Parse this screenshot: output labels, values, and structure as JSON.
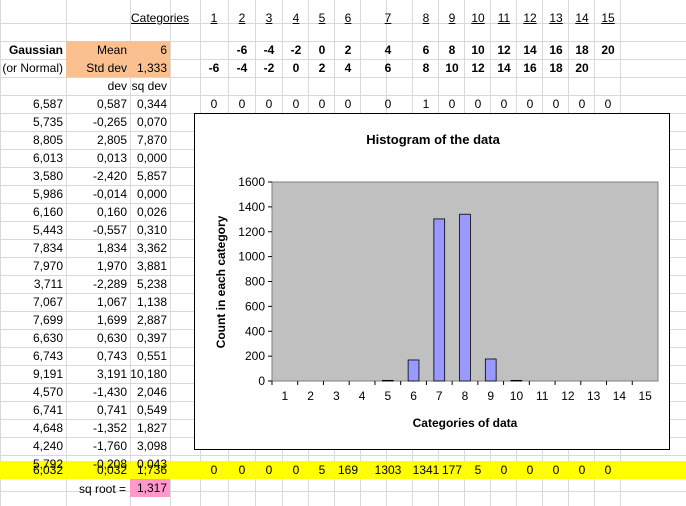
{
  "colors": {
    "orange": "#fac090",
    "yellow": "#ffff00",
    "pink": "#ff99cc",
    "plot_bg": "#c0c0c0",
    "bar": "#9999ff"
  },
  "header": {
    "categories_label": "Categories",
    "category_numbers": [
      "1",
      "2",
      "3",
      "4",
      "5",
      "6",
      "7",
      "8",
      "9",
      "10",
      "11",
      "12",
      "13",
      "14",
      "15"
    ]
  },
  "params": {
    "gaussian": "Gaussian",
    "or_normal": "(or Normal)",
    "mean_label": "Mean",
    "mean_value": "6",
    "std_label": "Std dev",
    "std_value": "1,333",
    "upper_bounds": [
      "-6",
      "-4",
      "-2",
      "0",
      "2",
      "4",
      "6",
      "8",
      "10",
      "12",
      "14",
      "16",
      "18",
      "20"
    ],
    "lower_bounds": [
      "-6",
      "-4",
      "-2",
      "0",
      "2",
      "4",
      "6",
      "8",
      "10",
      "12",
      "14",
      "16",
      "18",
      "20"
    ]
  },
  "col_headers": {
    "dev": "dev",
    "sq_dev": "sq dev"
  },
  "data_rows": [
    [
      "6,587",
      "0,587",
      "0,344"
    ],
    [
      "5,735",
      "-0,265",
      "0,070"
    ],
    [
      "8,805",
      "2,805",
      "7,870"
    ],
    [
      "6,013",
      "0,013",
      "0,000"
    ],
    [
      "3,580",
      "-2,420",
      "5,857"
    ],
    [
      "5,986",
      "-0,014",
      "0,000"
    ],
    [
      "6,160",
      "0,160",
      "0,026"
    ],
    [
      "5,443",
      "-0,557",
      "0,310"
    ],
    [
      "7,834",
      "1,834",
      "3,362"
    ],
    [
      "7,970",
      "1,970",
      "3,881"
    ],
    [
      "3,711",
      "-2,289",
      "5,238"
    ],
    [
      "7,067",
      "1,067",
      "1,138"
    ],
    [
      "7,699",
      "1,699",
      "2,887"
    ],
    [
      "6,630",
      "0,630",
      "0,397"
    ],
    [
      "6,743",
      "0,743",
      "0,551"
    ],
    [
      "9,191",
      "3,191",
      "10,180"
    ],
    [
      "4,570",
      "-1,430",
      "2,046"
    ],
    [
      "6,741",
      "0,741",
      "0,549"
    ],
    [
      "4,648",
      "-1,352",
      "1,827"
    ],
    [
      "4,240",
      "-1,760",
      "3,098"
    ],
    [
      "5,792",
      "-0,208",
      "0,043"
    ]
  ],
  "first_row_counts": [
    "0",
    "0",
    "0",
    "0",
    "0",
    "0",
    "0",
    "1",
    "0",
    "0",
    "0",
    "0",
    "0",
    "0",
    "0"
  ],
  "summary": {
    "mean": "6,032",
    "dev": "0,032",
    "sq_dev": "1,736",
    "counts": [
      "0",
      "0",
      "0",
      "0",
      "5",
      "169",
      "1303",
      "1341",
      "177",
      "5",
      "0",
      "0",
      "0",
      "0",
      "0"
    ]
  },
  "sqroot": {
    "label": "sq root =",
    "value": "1,317"
  },
  "chart_data": {
    "type": "bar",
    "title": "Histogram of the data",
    "xlabel": "Categories of data",
    "ylabel": "Count in each category",
    "categories": [
      "1",
      "2",
      "3",
      "4",
      "5",
      "6",
      "7",
      "8",
      "9",
      "10",
      "11",
      "12",
      "13",
      "14",
      "15"
    ],
    "values": [
      0,
      0,
      0,
      0,
      5,
      169,
      1303,
      1341,
      177,
      5,
      0,
      0,
      0,
      0,
      0
    ],
    "ylim": [
      0,
      1600
    ],
    "yticks": [
      "0",
      "200",
      "400",
      "600",
      "800",
      "1000",
      "1200",
      "1400",
      "1600"
    ],
    "grid": false,
    "legend": "none"
  }
}
